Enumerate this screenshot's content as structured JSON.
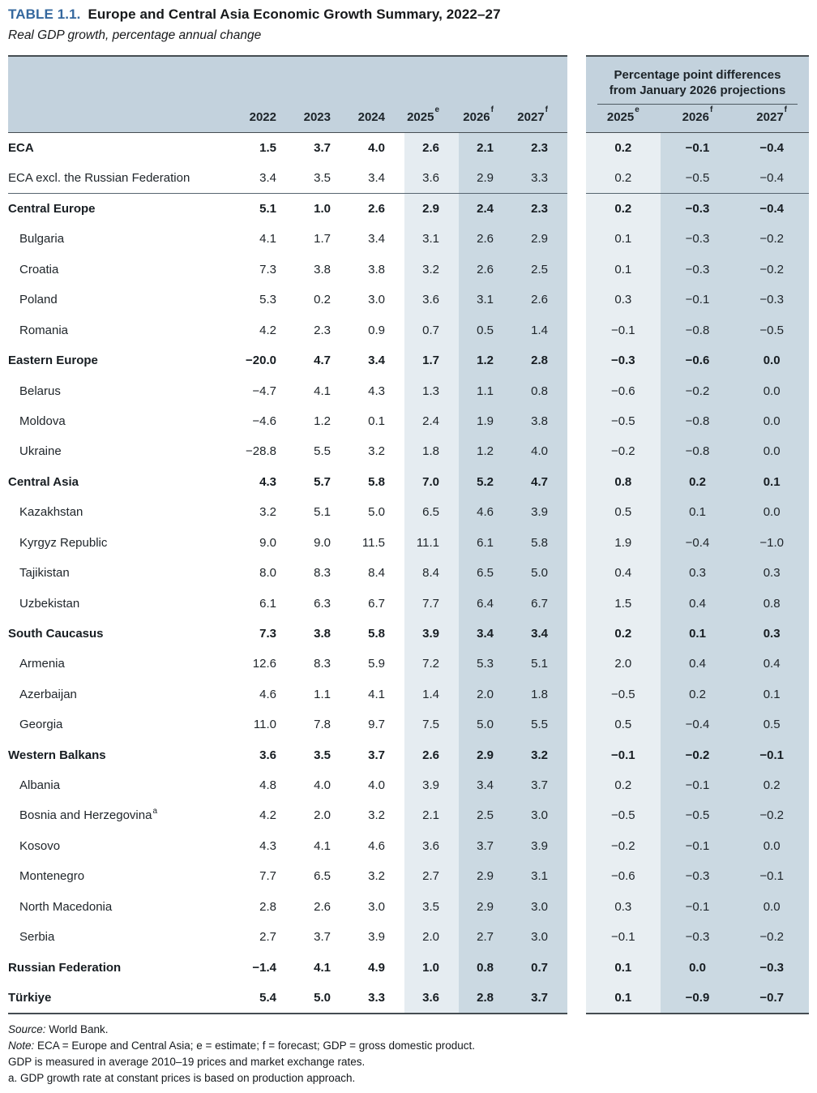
{
  "title": {
    "label": "TABLE 1.1.",
    "text": "Europe and Central Asia Economic Growth Summary, 2022–27",
    "subtitle": "Real GDP growth, percentage annual change"
  },
  "left_panel": {
    "columns": [
      {
        "year": "2022",
        "sup": ""
      },
      {
        "year": "2023",
        "sup": ""
      },
      {
        "year": "2024",
        "sup": ""
      },
      {
        "year": "2025",
        "sup": "e"
      },
      {
        "year": "2026",
        "sup": "f"
      },
      {
        "year": "2027",
        "sup": "f"
      }
    ]
  },
  "right_panel": {
    "header_line1": "Percentage point differences",
    "header_line2": "from January 2026 projections",
    "columns": [
      {
        "year": "2025",
        "sup": "e"
      },
      {
        "year": "2026",
        "sup": "f"
      },
      {
        "year": "2027",
        "sup": "f"
      }
    ]
  },
  "rows": [
    {
      "label": "ECA",
      "sup": "",
      "bold": true,
      "indent": false,
      "separator_after": false,
      "values": [
        "1.5",
        "3.7",
        "4.0",
        "2.6",
        "2.1",
        "2.3"
      ],
      "diffs": [
        "0.2",
        "−0.1",
        "−0.4"
      ]
    },
    {
      "label": "ECA excl. the Russian Federation",
      "sup": "",
      "bold": false,
      "indent": false,
      "separator_after": true,
      "values": [
        "3.4",
        "3.5",
        "3.4",
        "3.6",
        "2.9",
        "3.3"
      ],
      "diffs": [
        "0.2",
        "−0.5",
        "−0.4"
      ]
    },
    {
      "label": "Central Europe",
      "sup": "",
      "bold": true,
      "indent": false,
      "separator_after": false,
      "values": [
        "5.1",
        "1.0",
        "2.6",
        "2.9",
        "2.4",
        "2.3"
      ],
      "diffs": [
        "0.2",
        "−0.3",
        "−0.4"
      ]
    },
    {
      "label": "Bulgaria",
      "sup": "",
      "bold": false,
      "indent": true,
      "separator_after": false,
      "values": [
        "4.1",
        "1.7",
        "3.4",
        "3.1",
        "2.6",
        "2.9"
      ],
      "diffs": [
        "0.1",
        "−0.3",
        "−0.2"
      ]
    },
    {
      "label": "Croatia",
      "sup": "",
      "bold": false,
      "indent": true,
      "separator_after": false,
      "values": [
        "7.3",
        "3.8",
        "3.8",
        "3.2",
        "2.6",
        "2.5"
      ],
      "diffs": [
        "0.1",
        "−0.3",
        "−0.2"
      ]
    },
    {
      "label": "Poland",
      "sup": "",
      "bold": false,
      "indent": true,
      "separator_after": false,
      "values": [
        "5.3",
        "0.2",
        "3.0",
        "3.6",
        "3.1",
        "2.6"
      ],
      "diffs": [
        "0.3",
        "−0.1",
        "−0.3"
      ]
    },
    {
      "label": "Romania",
      "sup": "",
      "bold": false,
      "indent": true,
      "separator_after": false,
      "values": [
        "4.2",
        "2.3",
        "0.9",
        "0.7",
        "0.5",
        "1.4"
      ],
      "diffs": [
        "−0.1",
        "−0.8",
        "−0.5"
      ]
    },
    {
      "label": "Eastern Europe",
      "sup": "",
      "bold": true,
      "indent": false,
      "separator_after": false,
      "values": [
        "−20.0",
        "4.7",
        "3.4",
        "1.7",
        "1.2",
        "2.8"
      ],
      "diffs": [
        "−0.3",
        "−0.6",
        "0.0"
      ]
    },
    {
      "label": "Belarus",
      "sup": "",
      "bold": false,
      "indent": true,
      "separator_after": false,
      "values": [
        "−4.7",
        "4.1",
        "4.3",
        "1.3",
        "1.1",
        "0.8"
      ],
      "diffs": [
        "−0.6",
        "−0.2",
        "0.0"
      ]
    },
    {
      "label": "Moldova",
      "sup": "",
      "bold": false,
      "indent": true,
      "separator_after": false,
      "values": [
        "−4.6",
        "1.2",
        "0.1",
        "2.4",
        "1.9",
        "3.8"
      ],
      "diffs": [
        "−0.5",
        "−0.8",
        "0.0"
      ]
    },
    {
      "label": "Ukraine",
      "sup": "",
      "bold": false,
      "indent": true,
      "separator_after": false,
      "values": [
        "−28.8",
        "5.5",
        "3.2",
        "1.8",
        "1.2",
        "4.0"
      ],
      "diffs": [
        "−0.2",
        "−0.8",
        "0.0"
      ]
    },
    {
      "label": "Central Asia",
      "sup": "",
      "bold": true,
      "indent": false,
      "separator_after": false,
      "values": [
        "4.3",
        "5.7",
        "5.8",
        "7.0",
        "5.2",
        "4.7"
      ],
      "diffs": [
        "0.8",
        "0.2",
        "0.1"
      ]
    },
    {
      "label": "Kazakhstan",
      "sup": "",
      "bold": false,
      "indent": true,
      "separator_after": false,
      "values": [
        "3.2",
        "5.1",
        "5.0",
        "6.5",
        "4.6",
        "3.9"
      ],
      "diffs": [
        "0.5",
        "0.1",
        "0.0"
      ]
    },
    {
      "label": "Kyrgyz Republic",
      "sup": "",
      "bold": false,
      "indent": true,
      "separator_after": false,
      "values": [
        "9.0",
        "9.0",
        "11.5",
        "11.1",
        "6.1",
        "5.8"
      ],
      "diffs": [
        "1.9",
        "−0.4",
        "−1.0"
      ]
    },
    {
      "label": "Tajikistan",
      "sup": "",
      "bold": false,
      "indent": true,
      "separator_after": false,
      "values": [
        "8.0",
        "8.3",
        "8.4",
        "8.4",
        "6.5",
        "5.0"
      ],
      "diffs": [
        "0.4",
        "0.3",
        "0.3"
      ]
    },
    {
      "label": "Uzbekistan",
      "sup": "",
      "bold": false,
      "indent": true,
      "separator_after": false,
      "values": [
        "6.1",
        "6.3",
        "6.7",
        "7.7",
        "6.4",
        "6.7"
      ],
      "diffs": [
        "1.5",
        "0.4",
        "0.8"
      ]
    },
    {
      "label": "South Caucasus",
      "sup": "",
      "bold": true,
      "indent": false,
      "separator_after": false,
      "values": [
        "7.3",
        "3.8",
        "5.8",
        "3.9",
        "3.4",
        "3.4"
      ],
      "diffs": [
        "0.2",
        "0.1",
        "0.3"
      ]
    },
    {
      "label": "Armenia",
      "sup": "",
      "bold": false,
      "indent": true,
      "separator_after": false,
      "values": [
        "12.6",
        "8.3",
        "5.9",
        "7.2",
        "5.3",
        "5.1"
      ],
      "diffs": [
        "2.0",
        "0.4",
        "0.4"
      ]
    },
    {
      "label": "Azerbaijan",
      "sup": "",
      "bold": false,
      "indent": true,
      "separator_after": false,
      "values": [
        "4.6",
        "1.1",
        "4.1",
        "1.4",
        "2.0",
        "1.8"
      ],
      "diffs": [
        "−0.5",
        "0.2",
        "0.1"
      ]
    },
    {
      "label": "Georgia",
      "sup": "",
      "bold": false,
      "indent": true,
      "separator_after": false,
      "values": [
        "11.0",
        "7.8",
        "9.7",
        "7.5",
        "5.0",
        "5.5"
      ],
      "diffs": [
        "0.5",
        "−0.4",
        "0.5"
      ]
    },
    {
      "label": "Western Balkans",
      "sup": "",
      "bold": true,
      "indent": false,
      "separator_after": false,
      "values": [
        "3.6",
        "3.5",
        "3.7",
        "2.6",
        "2.9",
        "3.2"
      ],
      "diffs": [
        "−0.1",
        "−0.2",
        "−0.1"
      ]
    },
    {
      "label": "Albania",
      "sup": "",
      "bold": false,
      "indent": true,
      "separator_after": false,
      "values": [
        "4.8",
        "4.0",
        "4.0",
        "3.9",
        "3.4",
        "3.7"
      ],
      "diffs": [
        "0.2",
        "−0.1",
        "0.2"
      ]
    },
    {
      "label": "Bosnia and Herzegovina",
      "sup": "a",
      "bold": false,
      "indent": true,
      "separator_after": false,
      "values": [
        "4.2",
        "2.0",
        "3.2",
        "2.1",
        "2.5",
        "3.0"
      ],
      "diffs": [
        "−0.5",
        "−0.5",
        "−0.2"
      ]
    },
    {
      "label": "Kosovo",
      "sup": "",
      "bold": false,
      "indent": true,
      "separator_after": false,
      "values": [
        "4.3",
        "4.1",
        "4.6",
        "3.6",
        "3.7",
        "3.9"
      ],
      "diffs": [
        "−0.2",
        "−0.1",
        "0.0"
      ]
    },
    {
      "label": "Montenegro",
      "sup": "",
      "bold": false,
      "indent": true,
      "separator_after": false,
      "values": [
        "7.7",
        "6.5",
        "3.2",
        "2.7",
        "2.9",
        "3.1"
      ],
      "diffs": [
        "−0.6",
        "−0.3",
        "−0.1"
      ]
    },
    {
      "label": "North Macedonia",
      "sup": "",
      "bold": false,
      "indent": true,
      "separator_after": false,
      "values": [
        "2.8",
        "2.6",
        "3.0",
        "3.5",
        "2.9",
        "3.0"
      ],
      "diffs": [
        "0.3",
        "−0.1",
        "0.0"
      ]
    },
    {
      "label": "Serbia",
      "sup": "",
      "bold": false,
      "indent": true,
      "separator_after": false,
      "values": [
        "2.7",
        "3.7",
        "3.9",
        "2.0",
        "2.7",
        "3.0"
      ],
      "diffs": [
        "−0.1",
        "−0.3",
        "−0.2"
      ]
    },
    {
      "label": "Russian Federation",
      "sup": "",
      "bold": true,
      "indent": false,
      "separator_after": false,
      "values": [
        "−1.4",
        "4.1",
        "4.9",
        "1.0",
        "0.8",
        "0.7"
      ],
      "diffs": [
        "0.1",
        "0.0",
        "−0.3"
      ]
    },
    {
      "label": "Türkiye",
      "sup": "",
      "bold": true,
      "indent": false,
      "separator_after": false,
      "values": [
        "5.4",
        "5.0",
        "3.3",
        "3.6",
        "2.8",
        "3.7"
      ],
      "diffs": [
        "0.1",
        "−0.9",
        "−0.7"
      ]
    }
  ],
  "notes": {
    "source_prefix": "Source:",
    "source_text": " World Bank.",
    "note_prefix": "Note:",
    "note_text": " ECA = Europe and Central Asia; e = estimate; f = forecast; GDP = gross domestic product.",
    "line3": "GDP is measured in average 2010–19 prices and market exchange rates.",
    "line4": "a. GDP growth rate at constant prices is based on production approach."
  },
  "colors": {
    "title_accent": "#35689e",
    "header_band": "#c3d2dd",
    "estimate_band": "#e5ecf1",
    "forecast_band": "#cbd9e2",
    "diff_first_band": "#e8eef2",
    "rule_dark": "#454d52",
    "rule_mid": "#576570"
  }
}
